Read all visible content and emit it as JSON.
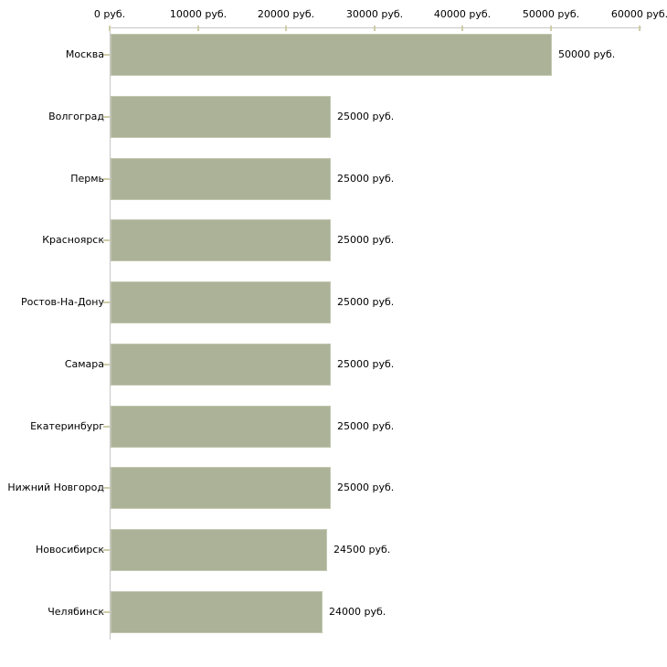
{
  "chart_data": {
    "type": "bar",
    "orientation": "horizontal",
    "title": "",
    "categories": [
      "Москва",
      "Волгоград",
      "Пермь",
      "Красноярск",
      "Ростов-На-Дону",
      "Самара",
      "Екатеринбург",
      "Нижний Новгород",
      "Новосибирск",
      "Челябинск"
    ],
    "values": [
      50000,
      25000,
      25000,
      25000,
      25000,
      25000,
      25000,
      25000,
      24500,
      24000
    ],
    "value_labels": [
      "50000 руб.",
      "25000 руб.",
      "25000 руб.",
      "25000 руб.",
      "25000 руб.",
      "25000 руб.",
      "25000 руб.",
      "25000 руб.",
      "24500 руб.",
      "24000 руб."
    ],
    "unit": "руб.",
    "x_axis": {
      "position": "top",
      "min": 0,
      "max": 60000,
      "ticks": [
        0,
        10000,
        20000,
        30000,
        40000,
        50000,
        60000
      ],
      "tick_labels": [
        "0 руб.",
        "10000 руб.",
        "20000 руб.",
        "30000 руб.",
        "40000 руб.",
        "50000 руб.",
        "60000 руб."
      ]
    },
    "grid": false,
    "legend": false,
    "colors": {
      "bar_fill": "#abb297",
      "bar_border": "#c3c8b2",
      "axis_line": "#c6c6c6",
      "tick_mark": "#cfcda9",
      "text": "#000000",
      "background": "#ffffff"
    }
  }
}
